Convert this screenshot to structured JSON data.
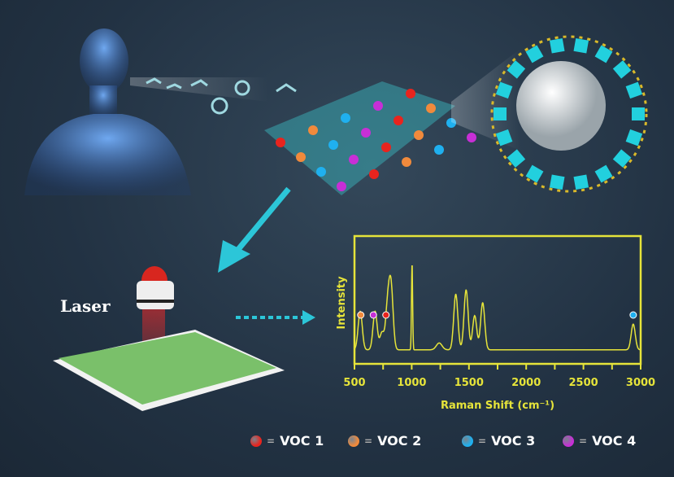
{
  "laser_label": "Laser",
  "legend": [
    {
      "label": "VOC 1",
      "color": "#e8241e"
    },
    {
      "label": "VOC 2",
      "color": "#f08a3c"
    },
    {
      "label": "VOC 3",
      "color": "#1fb0ef"
    },
    {
      "label": "VOC 4",
      "color": "#c72fd6"
    }
  ],
  "legend_equals": "=",
  "chart_data": {
    "type": "line",
    "xlabel": "Raman Shift (cm⁻¹)",
    "ylabel": "Intensity",
    "xlim": [
      500,
      3000
    ],
    "xticks": [
      500,
      1000,
      1500,
      2000,
      2500,
      3000
    ],
    "grid": false,
    "color": "#e6e43a",
    "baseline": 0.05,
    "peaks": [
      {
        "x": 550,
        "y": 0.45
      },
      {
        "x": 680,
        "y": 0.45
      },
      {
        "x": 740,
        "y": 0.2
      },
      {
        "x": 790,
        "y": 0.5
      },
      {
        "x": 820,
        "y": 0.7
      },
      {
        "x": 1003,
        "y": 1.0
      },
      {
        "x": 1240,
        "y": 0.08
      },
      {
        "x": 1385,
        "y": 0.65
      },
      {
        "x": 1475,
        "y": 0.7
      },
      {
        "x": 1550,
        "y": 0.4
      },
      {
        "x": 1620,
        "y": 0.55
      },
      {
        "x": 2935,
        "y": 0.3
      }
    ],
    "markers": [
      {
        "x": 555,
        "voc": "VOC 2",
        "color": "#f08a3c"
      },
      {
        "x": 665,
        "voc": "VOC 4",
        "color": "#c72fd6"
      },
      {
        "x": 775,
        "voc": "VOC 1",
        "color": "#e8241e"
      },
      {
        "x": 2935,
        "voc": "VOC 3",
        "color": "#1fb0ef"
      }
    ]
  }
}
